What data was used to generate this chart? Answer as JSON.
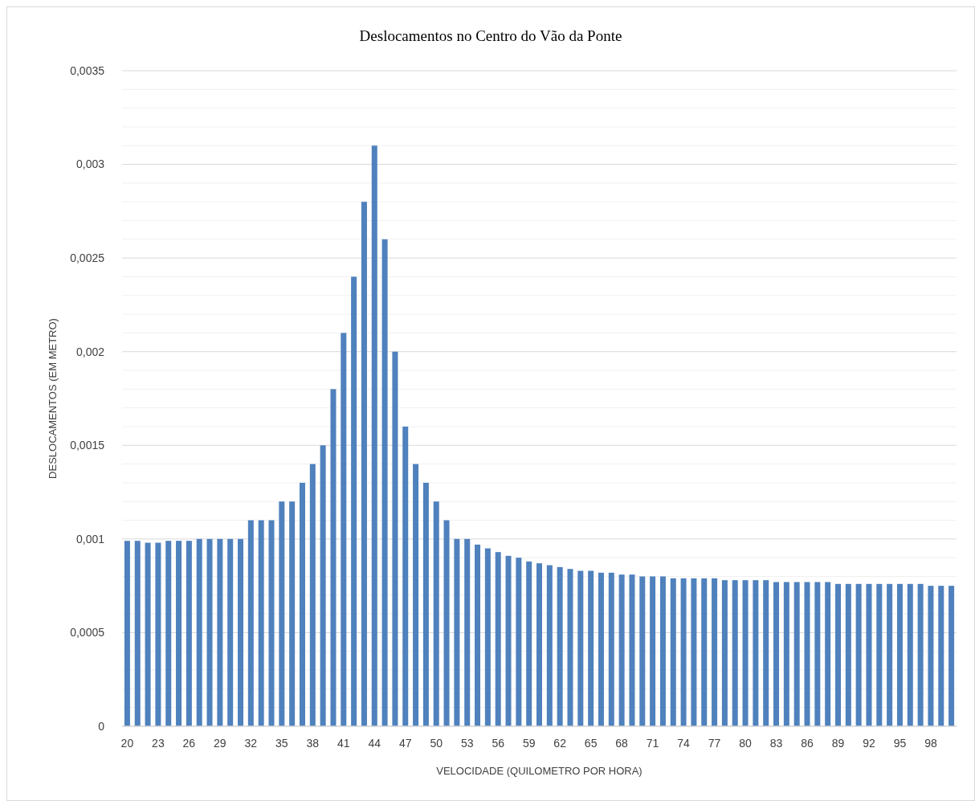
{
  "chart_data": {
    "type": "bar",
    "title": "Deslocamentos no Centro do Vão da Ponte",
    "xlabel": "VELOCIDADE (QUILOMETRO POR HORA)",
    "ylabel": "DESLOCAMENTOS (EM METRO)",
    "categories": [
      "20",
      null,
      null,
      "23",
      null,
      null,
      "26",
      null,
      null,
      "29",
      null,
      null,
      "32",
      null,
      null,
      "35",
      null,
      null,
      "38",
      null,
      null,
      "41",
      null,
      null,
      "44",
      null,
      null,
      "47",
      null,
      null,
      "50",
      null,
      null,
      "53",
      null,
      null,
      "56",
      null,
      null,
      "59",
      null,
      null,
      "62",
      null,
      null,
      "65",
      null,
      null,
      "68",
      null,
      null,
      "71",
      null,
      null,
      "74",
      null,
      null,
      "77",
      null,
      null,
      "80",
      null,
      null,
      "83",
      null,
      null,
      "86",
      null,
      null,
      "89",
      null,
      null,
      "92",
      null,
      null,
      "95",
      null,
      null,
      "98",
      null,
      null
    ],
    "series": [
      {
        "color": "#4f81bd",
        "values": [
          0.00099,
          0.00099,
          0.00098,
          0.00098,
          0.00099,
          0.00099,
          0.00099,
          0.001,
          0.001,
          0.001,
          0.001,
          0.001,
          0.0011,
          0.0011,
          0.0011,
          0.0012,
          0.0012,
          0.0013,
          0.0014,
          0.0015,
          0.0018,
          0.0021,
          0.0024,
          0.0028,
          0.0031,
          0.0026,
          0.002,
          0.0016,
          0.0014,
          0.0013,
          0.0012,
          0.0011,
          0.001,
          0.001,
          0.00097,
          0.00095,
          0.00093,
          0.00091,
          0.0009,
          0.00088,
          0.00087,
          0.00086,
          0.00085,
          0.00084,
          0.00083,
          0.00083,
          0.00082,
          0.00082,
          0.00081,
          0.00081,
          0.0008,
          0.0008,
          0.0008,
          0.00079,
          0.00079,
          0.00079,
          0.00079,
          0.00079,
          0.00078,
          0.00078,
          0.00078,
          0.00078,
          0.00078,
          0.00077,
          0.00077,
          0.00077,
          0.00077,
          0.00077,
          0.00077,
          0.00076,
          0.00076,
          0.00076,
          0.00076,
          0.00076,
          0.00076,
          0.00076,
          0.00076,
          0.00076,
          0.00075,
          0.00075,
          0.00075
        ]
      }
    ],
    "ylim": [
      0,
      0.0035
    ],
    "yticks": [
      {
        "value": 0,
        "label": "0"
      },
      {
        "value": 0.0001,
        "label": null
      },
      {
        "value": 0.0002,
        "label": null
      },
      {
        "value": 0.0003,
        "label": null
      },
      {
        "value": 0.0004,
        "label": null
      },
      {
        "value": 0.0005,
        "label": "0,0005"
      },
      {
        "value": 0.0006,
        "label": null
      },
      {
        "value": 0.0007,
        "label": null
      },
      {
        "value": 0.0008,
        "label": null
      },
      {
        "value": 0.0009,
        "label": null
      },
      {
        "value": 0.001,
        "label": "0,001"
      },
      {
        "value": 0.0011,
        "label": null
      },
      {
        "value": 0.0012,
        "label": null
      },
      {
        "value": 0.0013,
        "label": null
      },
      {
        "value": 0.0014,
        "label": null
      },
      {
        "value": 0.0015,
        "label": "0,0015"
      },
      {
        "value": 0.0016,
        "label": null
      },
      {
        "value": 0.0017,
        "label": null
      },
      {
        "value": 0.0018,
        "label": null
      },
      {
        "value": 0.0019,
        "label": null
      },
      {
        "value": 0.002,
        "label": "0,002"
      },
      {
        "value": 0.0021,
        "label": null
      },
      {
        "value": 0.0022,
        "label": null
      },
      {
        "value": 0.0023,
        "label": null
      },
      {
        "value": 0.0024,
        "label": null
      },
      {
        "value": 0.0025,
        "label": "0,0025"
      },
      {
        "value": 0.0026,
        "label": null
      },
      {
        "value": 0.0027,
        "label": null
      },
      {
        "value": 0.0028,
        "label": null
      },
      {
        "value": 0.0029,
        "label": null
      },
      {
        "value": 0.003,
        "label": "0,003"
      },
      {
        "value": 0.0031,
        "label": null
      },
      {
        "value": 0.0032,
        "label": null
      },
      {
        "value": 0.0033,
        "label": null
      },
      {
        "value": 0.0034,
        "label": null
      },
      {
        "value": 0.0035,
        "label": "0,0035"
      }
    ],
    "grid": "y"
  }
}
